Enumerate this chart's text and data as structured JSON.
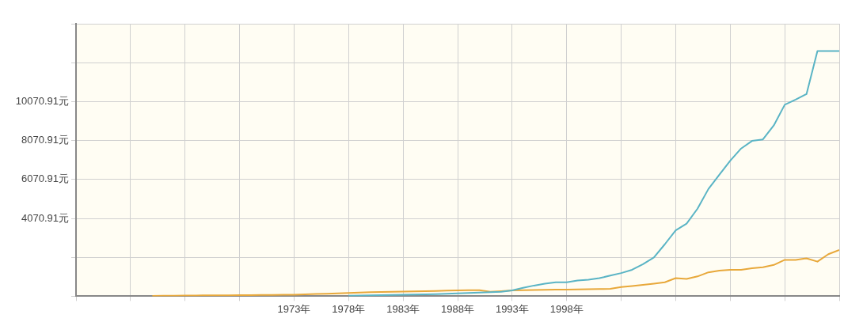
{
  "chart_data": {
    "type": "line",
    "x": [
      1960,
      1961,
      1962,
      1963,
      1964,
      1965,
      1966,
      1967,
      1968,
      1969,
      1970,
      1971,
      1972,
      1973,
      1974,
      1975,
      1976,
      1977,
      1978,
      1979,
      1980,
      1981,
      1982,
      1983,
      1984,
      1985,
      1986,
      1987,
      1988,
      1989,
      1990,
      1991,
      1992,
      1993,
      1994,
      1995,
      1996,
      1997,
      1998,
      1999,
      2000,
      2001,
      2002,
      2003,
      2004,
      2005,
      2006,
      2007,
      2008,
      2009,
      2010,
      2011,
      2012,
      2013,
      2014,
      2015,
      2016,
      2017,
      2018,
      2019,
      2020,
      2021,
      2022,
      2023
    ],
    "series": [
      {
        "color": "#5ab4c5",
        "values": [
          null,
          null,
          null,
          null,
          null,
          null,
          null,
          null,
          null,
          null,
          null,
          null,
          null,
          null,
          null,
          null,
          null,
          null,
          100,
          110,
          120,
          130,
          140,
          150,
          160,
          170,
          180,
          200,
          220,
          240,
          260,
          280,
          300,
          370,
          500,
          620,
          720,
          790,
          790,
          880,
          920,
          1000,
          1130,
          1260,
          1430,
          1720,
          2060,
          2740,
          3460,
          3800,
          4570,
          5580,
          6310,
          7030,
          7660,
          8050,
          8130,
          8850,
          9910,
          10170,
          10460,
          12670,
          12670,
          12670
        ]
      },
      {
        "color": "#e8a83a",
        "values": [
          90,
          100,
          100,
          110,
          110,
          120,
          120,
          120,
          130,
          130,
          140,
          140,
          150,
          150,
          170,
          190,
          200,
          220,
          240,
          260,
          280,
          290,
          300,
          310,
          320,
          330,
          340,
          360,
          370,
          380,
          380,
          300,
          330,
          370,
          380,
          390,
          400,
          410,
          410,
          420,
          430,
          440,
          450,
          540,
          600,
          660,
          720,
          790,
          1000,
          960,
          1090,
          1300,
          1390,
          1430,
          1430,
          1510,
          1560,
          1680,
          1940,
          1940,
          2020,
          1850,
          2230,
          2450
        ]
      }
    ],
    "xlim": [
      1953,
      2023
    ],
    "xticks": [
      {
        "value": 1953,
        "label": null
      },
      {
        "value": 1958,
        "label": null
      },
      {
        "value": 1963,
        "label": null
      },
      {
        "value": 1968,
        "label": null
      },
      {
        "value": 1973,
        "label": "1973年"
      },
      {
        "value": 1978,
        "label": "1978年"
      },
      {
        "value": 1983,
        "label": "1983年"
      },
      {
        "value": 1988,
        "label": "1988年"
      },
      {
        "value": 1993,
        "label": "1993年"
      },
      {
        "value": 1998,
        "label": "1998年"
      },
      {
        "value": 2003,
        "label": null
      },
      {
        "value": 2008,
        "label": null
      },
      {
        "value": 2013,
        "label": null
      },
      {
        "value": 2018,
        "label": null
      },
      {
        "value": 2023,
        "label": null
      }
    ],
    "ylim": [
      70.91,
      14070.91
    ],
    "yticks": [
      {
        "value": 70.91,
        "label": null
      },
      {
        "value": 2070.91,
        "label": null
      },
      {
        "value": 4070.91,
        "label": "4070.91元"
      },
      {
        "value": 6070.91,
        "label": "6070.91元"
      },
      {
        "value": 8070.91,
        "label": "8070.91元"
      },
      {
        "value": 10070.91,
        "label": "10070.91元"
      },
      {
        "value": 12070.91,
        "label": null
      },
      {
        "value": 14070.91,
        "label": null
      }
    ],
    "grid": true,
    "marker": "none",
    "line_style": "solid"
  }
}
